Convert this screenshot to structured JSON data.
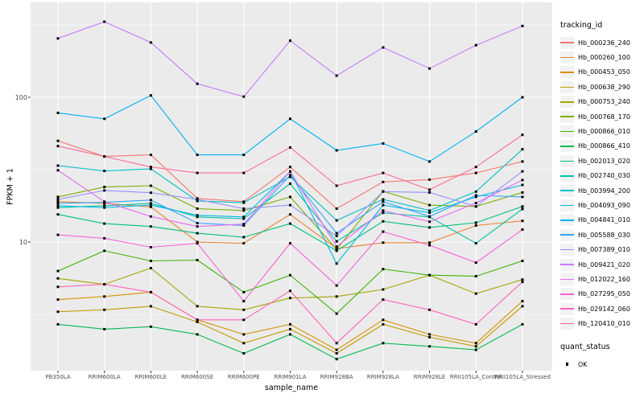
{
  "chart_data": {
    "type": "line",
    "title": "",
    "xlabel": "sample_name",
    "ylabel": "FPKM + 1",
    "y_scale": "log10",
    "y_ticks": [
      10,
      100
    ],
    "y_tick_labels": [
      "10",
      "100"
    ],
    "y_range": [
      1.4,
      520
    ],
    "grid": "on",
    "legend_position": "right",
    "legend_title": "tracking_id",
    "quant_legend_title": "quant_status",
    "quant_status_items": [
      "OK"
    ],
    "marker": "black-square",
    "panel_bg": "#EBEBEB",
    "grid_color": "#FFFFFF",
    "tick_text_color": "#4D4D4D",
    "point_color": "#000000",
    "categories": [
      "PB350LA",
      "RRIM600LA",
      "RRIM600LE",
      "RRIM600SE",
      "RRIM600PE",
      "RRIM901LA",
      "RRIM928BA",
      "RRIM928LA",
      "RRIM928LE",
      "RRII105LA_Control",
      "RRII105LA_Stressed"
    ],
    "series": [
      {
        "name": "Hb_000236_240",
        "color": "#F8766D",
        "values": [
          50,
          39,
          40,
          20,
          19,
          33,
          17,
          26,
          27,
          30,
          36
        ]
      },
      {
        "name": "Hb_000260_100",
        "color": "#EA8331",
        "values": [
          19,
          18.5,
          17.5,
          10,
          9.8,
          15.5,
          9,
          9.9,
          9.9,
          13,
          14
        ]
      },
      {
        "name": "Hb_000453_050",
        "color": "#D89000",
        "values": [
          4.0,
          4.2,
          4.5,
          2.9,
          2.3,
          2.7,
          1.8,
          2.9,
          2.3,
          2.0,
          3.9
        ]
      },
      {
        "name": "Hb_000638_290",
        "color": "#C09B00",
        "values": [
          3.3,
          3.4,
          3.6,
          2.8,
          2.0,
          2.5,
          1.7,
          2.7,
          2.2,
          1.9,
          3.6
        ]
      },
      {
        "name": "Hb_000753_240",
        "color": "#A3A500",
        "values": [
          5.6,
          5.1,
          6.6,
          3.6,
          3.4,
          4.1,
          4.2,
          4.7,
          5.9,
          4.4,
          5.5
        ]
      },
      {
        "name": "Hb_000768_170",
        "color": "#7CAE00",
        "values": [
          20.5,
          24,
          24.5,
          17,
          16.5,
          20.5,
          8.9,
          22.4,
          18,
          17.6,
          22
        ]
      },
      {
        "name": "Hb_000866_010",
        "color": "#39B600",
        "values": [
          6.3,
          8.7,
          7.4,
          7.5,
          4.5,
          5.9,
          3.2,
          6.5,
          5.9,
          5.8,
          7.4
        ]
      },
      {
        "name": "Hb_000866_410",
        "color": "#00BB4E",
        "values": [
          2.7,
          2.5,
          2.6,
          2.3,
          1.7,
          2.3,
          1.55,
          2.0,
          1.9,
          1.8,
          2.7
        ]
      },
      {
        "name": "Hb_002013_020",
        "color": "#00BF7D",
        "values": [
          15.5,
          13.4,
          12.8,
          11.5,
          10.8,
          13.4,
          8.7,
          13.9,
          12.6,
          13.6,
          17.6
        ]
      },
      {
        "name": "Hb_002740_030",
        "color": "#00C1A3",
        "values": [
          17.3,
          17.8,
          18.5,
          14.9,
          14.5,
          25.3,
          10.1,
          15.9,
          14.9,
          9.8,
          16.9
        ]
      },
      {
        "name": "Hb_003994_200",
        "color": "#00BFC4",
        "values": [
          33.7,
          31,
          32,
          19.2,
          18.7,
          28.2,
          14.1,
          19.7,
          16.5,
          22.3,
          43.7
        ]
      },
      {
        "name": "Hb_004093_090",
        "color": "#00BAE0",
        "values": [
          17.8,
          17.3,
          18,
          15.3,
          14.9,
          30.7,
          7.1,
          18,
          15.9,
          20.5,
          24.8
        ]
      },
      {
        "name": "Hb_004841_010",
        "color": "#00B0F6",
        "values": [
          78,
          71,
          103,
          40,
          40,
          71,
          43,
          48,
          36,
          58,
          100
        ]
      },
      {
        "name": "Hb_005588_030",
        "color": "#35A2FF",
        "values": [
          18.5,
          18.8,
          19.5,
          13.5,
          13,
          29,
          11.5,
          19,
          15,
          21,
          20.5
        ]
      },
      {
        "name": "Hb_007389_010",
        "color": "#9590FF",
        "values": [
          19.7,
          22.7,
          21.9,
          19.7,
          17,
          18,
          11,
          22.3,
          22,
          17.6,
          30.8
        ]
      },
      {
        "name": "Hb_009421_020",
        "color": "#C77CFF",
        "values": [
          255,
          333,
          239,
          124,
          101,
          246,
          141,
          221,
          158,
          229,
          311
        ]
      },
      {
        "name": "Hb_012022_160",
        "color": "#E76BF3",
        "values": [
          31.3,
          19,
          15,
          12.8,
          13.3,
          30.7,
          9.3,
          16.5,
          13.8,
          18.6,
          26.8
        ]
      },
      {
        "name": "Hb_027295_050",
        "color": "#FA62DB",
        "values": [
          11.2,
          10.6,
          9.2,
          9.8,
          3.9,
          9.8,
          5.0,
          11.8,
          9.5,
          7.2,
          12.2
        ]
      },
      {
        "name": "Hb_029142_060",
        "color": "#FF62BC",
        "values": [
          4.9,
          5.1,
          4.5,
          2.9,
          2.9,
          4.6,
          2.0,
          4.0,
          3.4,
          2.7,
          5.3
        ]
      },
      {
        "name": "Hb_120410_010",
        "color": "#FF6A98",
        "values": [
          46,
          39,
          33,
          30,
          30,
          45,
          24.5,
          30,
          23,
          33,
          55
        ]
      }
    ]
  }
}
